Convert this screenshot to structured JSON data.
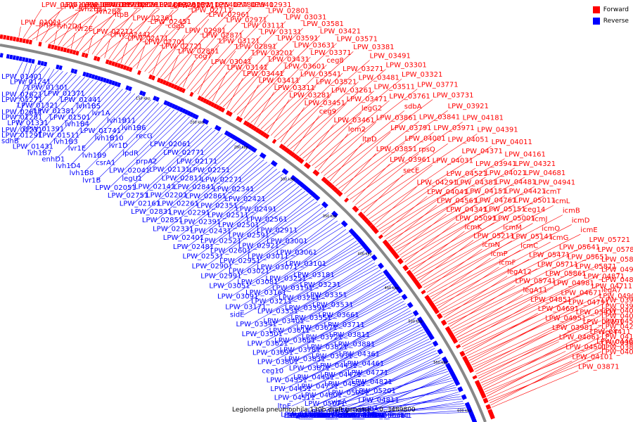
{
  "title": "Legionella pneumophila 130b draft genome. - 0..3489800",
  "legend": [
    {
      "label": "Forward",
      "color": "#ff0000"
    },
    {
      "label": "Reverse",
      "color": "#0000ff"
    }
  ],
  "colors": {
    "forward": "#ff0000",
    "reverse": "#0000ff",
    "backbone": "#888888",
    "tick": "#000000"
  },
  "ticks": [
    "150 kbp",
    "200 kbp",
    "250 kbp",
    "300 kbp",
    "350 kbp",
    "400 kbp",
    "450 kbp",
    "500 kbp",
    "550 kbp",
    "600 kbp"
  ],
  "forward_labels": [
    "LPW_01011",
    "LPW_01251",
    "LPW_01311",
    "LPW_01461",
    "prpA1",
    "LPW_01531",
    "LPW_01761",
    "LPW_01751",
    "lvh2D4",
    "lvh2B11",
    "LPW_01861",
    "LPW_01781",
    "lvr2E",
    "lvh2B3",
    "LPW_02091",
    "LPW_02181",
    "LPW_02211",
    "ltpB",
    "ltpC",
    "LPW_02281",
    "LPW_02441",
    "LPW_02361",
    "LPW_02321",
    "LPW_02311",
    "LPW_02471",
    "LPW_02451",
    "LPW_02571",
    "LPW_02541",
    "LPW_02701",
    "cog5",
    "LPW_02711",
    "LPW_02781",
    "LPW_02721",
    "LPW_02981",
    "LPW_02961",
    "LPW_02941",
    "LPW_02881",
    "LPW_02871",
    "LPW_02971",
    "LPW_02931",
    "cog7",
    "LPW_03121",
    "LPW_03111",
    "LPW_02801",
    "LPW_03041",
    "LPW_02891",
    "LPW_03131",
    "LPW_03031",
    "LPW_03141",
    "LPW_03201",
    "LPW_03591",
    "LPW_03581",
    "LPW_03441",
    "LPW_03431",
    "LPW_03631",
    "LPW_03421",
    "LPW_03411",
    "LPW_03601",
    "LPW_03371",
    "LPW_03571",
    "LPW_03311",
    "LPW_03541",
    "ceg8",
    "LPW_03381",
    "LPW_03281",
    "LPW_03521",
    "LPW_03271",
    "LPW_03491",
    "LPW_03451",
    "LPW_03261",
    "LPW_03481",
    "LPW_03301",
    "ceg9",
    "LPW_03471",
    "LPW_03511",
    "LPW_03321",
    "LPW_03461",
    "legG2",
    "LPW_03761",
    "LPW_03771",
    "lem2",
    "LPW_03861",
    "sdbA",
    "LPW_03731",
    "ltpD",
    "LPW_03791",
    "LPW_03841",
    "LPW_03921",
    "LPW_03851",
    "LPW_04001",
    "LPW_03971",
    "LPW_04181",
    "LPW_03961",
    "rpsQ",
    "LPW_04051",
    "LPW_04391",
    "secE",
    "LPW_04031",
    "LPW_04371",
    "LPW_04011",
    "LPW_04291",
    "LPW_04521",
    "LPW_03941",
    "LPW_04161",
    "LPW_04041",
    "LPW_04381",
    "LPW_04021",
    "LPW_04321",
    "LPW_04561",
    "LPW_04151",
    "LPW_04481",
    "LPW_04681",
    "LPW_04341",
    "LPW_04761",
    "LPW_04421",
    "LPW_04941",
    "LPW_05091",
    "LPW_05151",
    "LPW_05011",
    "icmT",
    "icmK",
    "LPW_05001",
    "ceg14",
    "icmL",
    "LPW_05211",
    "icmM",
    "icmJ",
    "icmB",
    "icmN",
    "LPW_05141",
    "icmO",
    "icmD",
    "icmP",
    "icmC",
    "icmG",
    "icmE",
    "icmF",
    "LPW_05471",
    "LPW_05641",
    "LPW_05721",
    "legA12",
    "LPW_05711",
    "LPW_05651",
    "LPW_05781",
    "LPW_05741",
    "LPW_05861",
    "LPW_05871",
    "LPW_05801",
    "legA11",
    "LPW_04981",
    "LPW_04871",
    "LPW_04991",
    "LPW_04851",
    "LPW_04671",
    "LPW_04711",
    "LPW_04891",
    "LPW_04691",
    "LPW_04791",
    "LPW_04901",
    "legA7",
    "LPW_04951",
    "LPW_03911",
    "LPW_03901",
    "LPW_03991",
    "LPW_03981",
    "LPW_04191",
    "LPW_04081",
    "LPW_04071",
    "LPW_04061",
    "LPW_04411",
    "LPW_04211",
    "LPW_04531",
    "LPW_04501",
    "LPW_04401",
    "LPW_04111",
    "secY",
    "LPW_04101",
    "LPW_04091",
    "LPW_03891",
    "LPW_03881",
    "LPW_03871"
  ],
  "reverse_labels": [
    "LPW_01401",
    "LPW_02621",
    "LPW_02611",
    "LPW_01231",
    "LPW_01241",
    "LPW_01271",
    "LPW_01281",
    "LPW_01291",
    "LPW_01301",
    "LPW_01321",
    "LPW_01331",
    "sdhB",
    "LPW_01371",
    "LPW_01381",
    "LPW_01391",
    "LPW_01431",
    "LPW_01441",
    "LPW_01501",
    "LPW_01511",
    "lvh1B7",
    "lvh1B5",
    "lvh1B4",
    "lvh1B3",
    "enhD1",
    "lvr1A",
    "LPW_01741",
    "lvr1E",
    "lvh1D4",
    "lvh1B11",
    "lvh1B10",
    "lvh1B9",
    "lvh1B8",
    "lvh1B6",
    "lvr1D",
    "csrA1",
    "lvr1B",
    "recG",
    "lpdR",
    "LPW_02041",
    "LPW_02051",
    "LPW_02061",
    "prpA2",
    "legU1",
    "LPW_02751",
    "LPW_02771",
    "LPW_02131",
    "LPW_02141",
    "LPW_02161",
    "LPW_02171",
    "LPW_02811",
    "LPW_02201",
    "LPW_02831",
    "LPW_02251",
    "LPW_02841",
    "LPW_02261",
    "LPW_02851",
    "LPW_02271",
    "LPW_02861",
    "LPW_02291",
    "LPW_02331",
    "LPW_02341",
    "LPW_02351",
    "LPW_02391",
    "LPW_02401",
    "LPW_02421",
    "LPW_02511",
    "LPW_02431",
    "LPW_02481",
    "LPW_02491",
    "LPW_02501",
    "LPW_02521",
    "LPW_02531",
    "LPW_02561",
    "LPW_02591",
    "LPW_02601",
    "LPW_02901",
    "LPW_02911",
    "LPW_02921",
    "LPW_02951",
    "LPW_02991",
    "LPW_03001",
    "LPW_03011",
    "LPW_03021",
    "LPW_03051",
    "LPW_03061",
    "LPW_03071",
    "LPW_03081",
    "LPW_03091",
    "LPW_03101",
    "LPW_03251",
    "LPW_03161",
    "LPW_03171",
    "LPW_03181",
    "LPW_03191",
    "LPW_03211",
    "sidE",
    "LPW_03231",
    "LPW_03241",
    "LPW_03331",
    "LPW_03341",
    "LPW_03351",
    "LPW_03391",
    "LPW_03401",
    "LPW_03501",
    "LPW_03531",
    "LPW_03551",
    "LPW_03611",
    "LPW_03621",
    "LPW_03661",
    "LPW_03671",
    "LPW_03681",
    "LPW_03691",
    "LPW_03711",
    "LPW_03721",
    "LPW_03781",
    "LPW_03801",
    "LPW_03811",
    "LPW_03821",
    "LPW_03831",
    "ceg10",
    "LPW_03881",
    "LPW_03931",
    "LPW_03871",
    "LPW_04351",
    "LPW_04361",
    "LPW_04431",
    "LPW_04441",
    "LPW_04451",
    "LPW_04461",
    "LPW_04471",
    "LPW_04731",
    "LPW_04511",
    "LPW_04771",
    "LPW_04541",
    "LPW_04801",
    "ltpE",
    "LPW_04821",
    "LPW_05041",
    "LPW_05071",
    "LPW_05101",
    "LPW_05201",
    "vipA",
    "LPW_04631",
    "LPW_04621",
    "LPW_04811",
    "LPW_04611",
    "LPW_04701",
    "LPW_04601",
    "sdhA",
    "LPW_04661",
    "LPW_04831",
    "LPW_04781",
    "LPW_05051",
    "LPW_05081",
    "LPW_05061",
    "LPW_05171",
    "dotU",
    "LPW_05411",
    "citA",
    "LPW_05431",
    "LPW_05461",
    "LPW_05561",
    "LPW_05551",
    "LPW_05421",
    "LPW_05441",
    "LPW_05541"
  ]
}
